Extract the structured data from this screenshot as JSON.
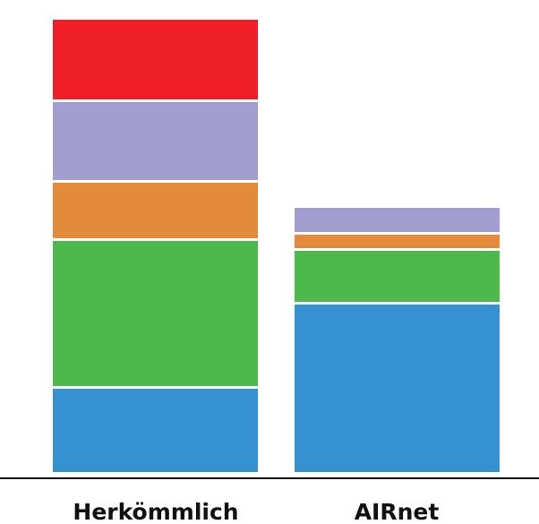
{
  "chart_data": {
    "type": "bar",
    "stacked": true,
    "categories": [
      "Herkömmlich",
      "AIRnet"
    ],
    "series": [
      {
        "color": "#3591d0",
        "values": [
          96,
          190
        ]
      },
      {
        "color": "#4db84c",
        "values": [
          165,
          60
        ]
      },
      {
        "color": "#e38b3a",
        "values": [
          65,
          18
        ]
      },
      {
        "color": "#a29ed0",
        "values": [
          90,
          30
        ]
      },
      {
        "color": "#ee1f27",
        "values": [
          92,
          0
        ]
      }
    ],
    "ylim": [
      0,
      515
    ],
    "grid": false,
    "legend": "none",
    "title": "",
    "xlabel": "",
    "ylabel": ""
  }
}
